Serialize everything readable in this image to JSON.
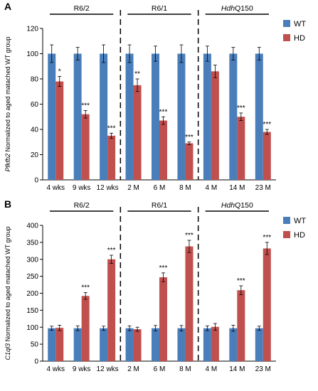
{
  "colors": {
    "wt": "#4a7ebb",
    "hd": "#c0504d",
    "axis": "#000000"
  },
  "chart_data": [
    {
      "panel": "A",
      "type": "bar",
      "ylabel_italic": "Pfkfb2",
      "ylabel_rest": " Normalized to aged matached WT group",
      "ylim": [
        0,
        120
      ],
      "yticks": [
        0,
        20,
        40,
        60,
        80,
        100,
        120
      ],
      "categories": [
        "4 wks",
        "9 wks",
        "12 wks",
        "2 M",
        "6 M",
        "8 M",
        "4 M",
        "14 M",
        "23 M"
      ],
      "groups": [
        {
          "label": "R6/2",
          "italic_prefix": "",
          "from": 0,
          "to": 2
        },
        {
          "label": "R6/1",
          "italic_prefix": "",
          "from": 3,
          "to": 5
        },
        {
          "label": "Q150",
          "italic_prefix": "Hdh",
          "from": 6,
          "to": 8
        }
      ],
      "series": [
        {
          "name": "WT",
          "values": [
            100,
            100,
            100,
            100,
            100,
            100,
            100,
            100,
            100
          ],
          "errors": [
            7,
            5,
            7,
            7,
            6,
            7,
            6,
            5,
            5
          ]
        },
        {
          "name": "HD",
          "values": [
            78,
            52,
            35,
            75,
            47,
            29,
            86,
            50,
            38
          ],
          "errors": [
            4,
            3,
            2,
            5,
            3,
            1,
            5,
            3,
            2
          ]
        }
      ],
      "significance": [
        "*",
        "***",
        "***",
        "**",
        "***",
        "***",
        "",
        "***",
        "***"
      ]
    },
    {
      "panel": "B",
      "type": "bar",
      "ylabel_italic": "C1ql3",
      "ylabel_rest": " Normalized to aged matached WT group",
      "ylim": [
        0,
        400
      ],
      "yticks": [
        0,
        50,
        100,
        150,
        200,
        250,
        300,
        350,
        400
      ],
      "categories": [
        "4 wks",
        "9 wks",
        "12 wks",
        "2 M",
        "6 M",
        "8 M",
        "4 M",
        "14 M",
        "23 M"
      ],
      "groups": [
        {
          "label": "R6/2",
          "italic_prefix": "",
          "from": 0,
          "to": 2
        },
        {
          "label": "R6/1",
          "italic_prefix": "",
          "from": 3,
          "to": 5
        },
        {
          "label": "Q150",
          "italic_prefix": "Hdh",
          "from": 6,
          "to": 8
        }
      ],
      "series": [
        {
          "name": "WT",
          "values": [
            97,
            97,
            97,
            97,
            97,
            97,
            97,
            97,
            97
          ],
          "errors": [
            6,
            7,
            6,
            7,
            8,
            8,
            7,
            9,
            6
          ]
        },
        {
          "name": "HD",
          "values": [
            98,
            192,
            300,
            94,
            247,
            338,
            101,
            209,
            332
          ],
          "errors": [
            8,
            10,
            12,
            6,
            13,
            18,
            10,
            13,
            18
          ]
        }
      ],
      "significance": [
        "",
        "***",
        "***",
        "",
        "***",
        "***",
        "",
        "***",
        "***"
      ]
    }
  ]
}
